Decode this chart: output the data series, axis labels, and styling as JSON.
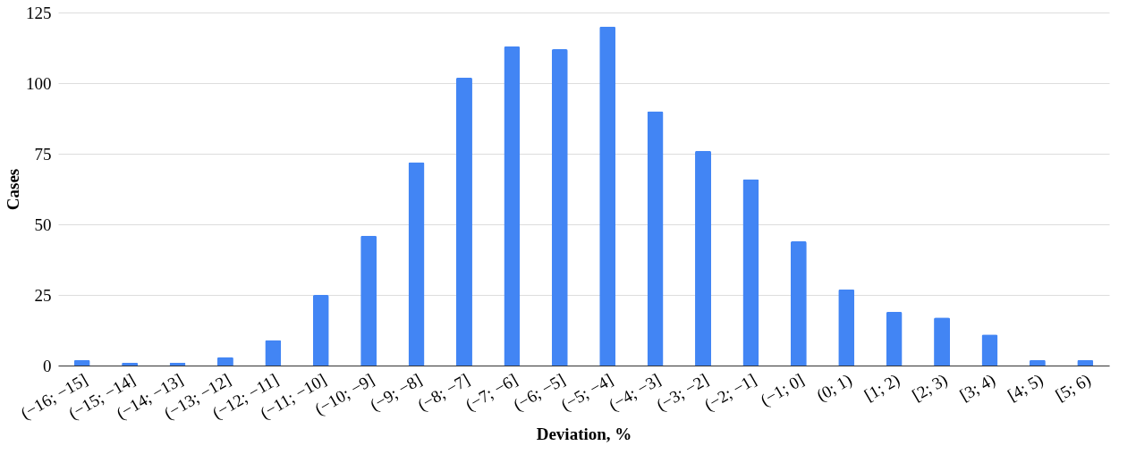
{
  "chart_data": {
    "type": "bar",
    "xlabel": "Deviation, %",
    "ylabel": "Cases",
    "categories": [
      "(−16; −15]",
      "(−15; −14]",
      "(−14; −13]",
      "(−13; −12]",
      "(−12; −11]",
      "(−11; −10]",
      "(−10; −9]",
      "(−9; −8]",
      "(−8; −7]",
      "(−7; −6]",
      "(−6; −5]",
      "(−5; −4]",
      "(−4; −3]",
      "(−3; −2]",
      "(−2; −1]",
      "(−1; 0]",
      "(0; 1)",
      "[1; 2)",
      "[2; 3)",
      "[3; 4)",
      "[4; 5)",
      "[5; 6)"
    ],
    "values": [
      2,
      1,
      1,
      3,
      9,
      25,
      46,
      72,
      102,
      113,
      112,
      120,
      90,
      76,
      66,
      44,
      27,
      19,
      17,
      11,
      2,
      2
    ],
    "color": "#4285f4",
    "ylim": [
      0,
      125
    ],
    "yticks": [
      0,
      25,
      50,
      75,
      100,
      125
    ],
    "grid": "y"
  }
}
